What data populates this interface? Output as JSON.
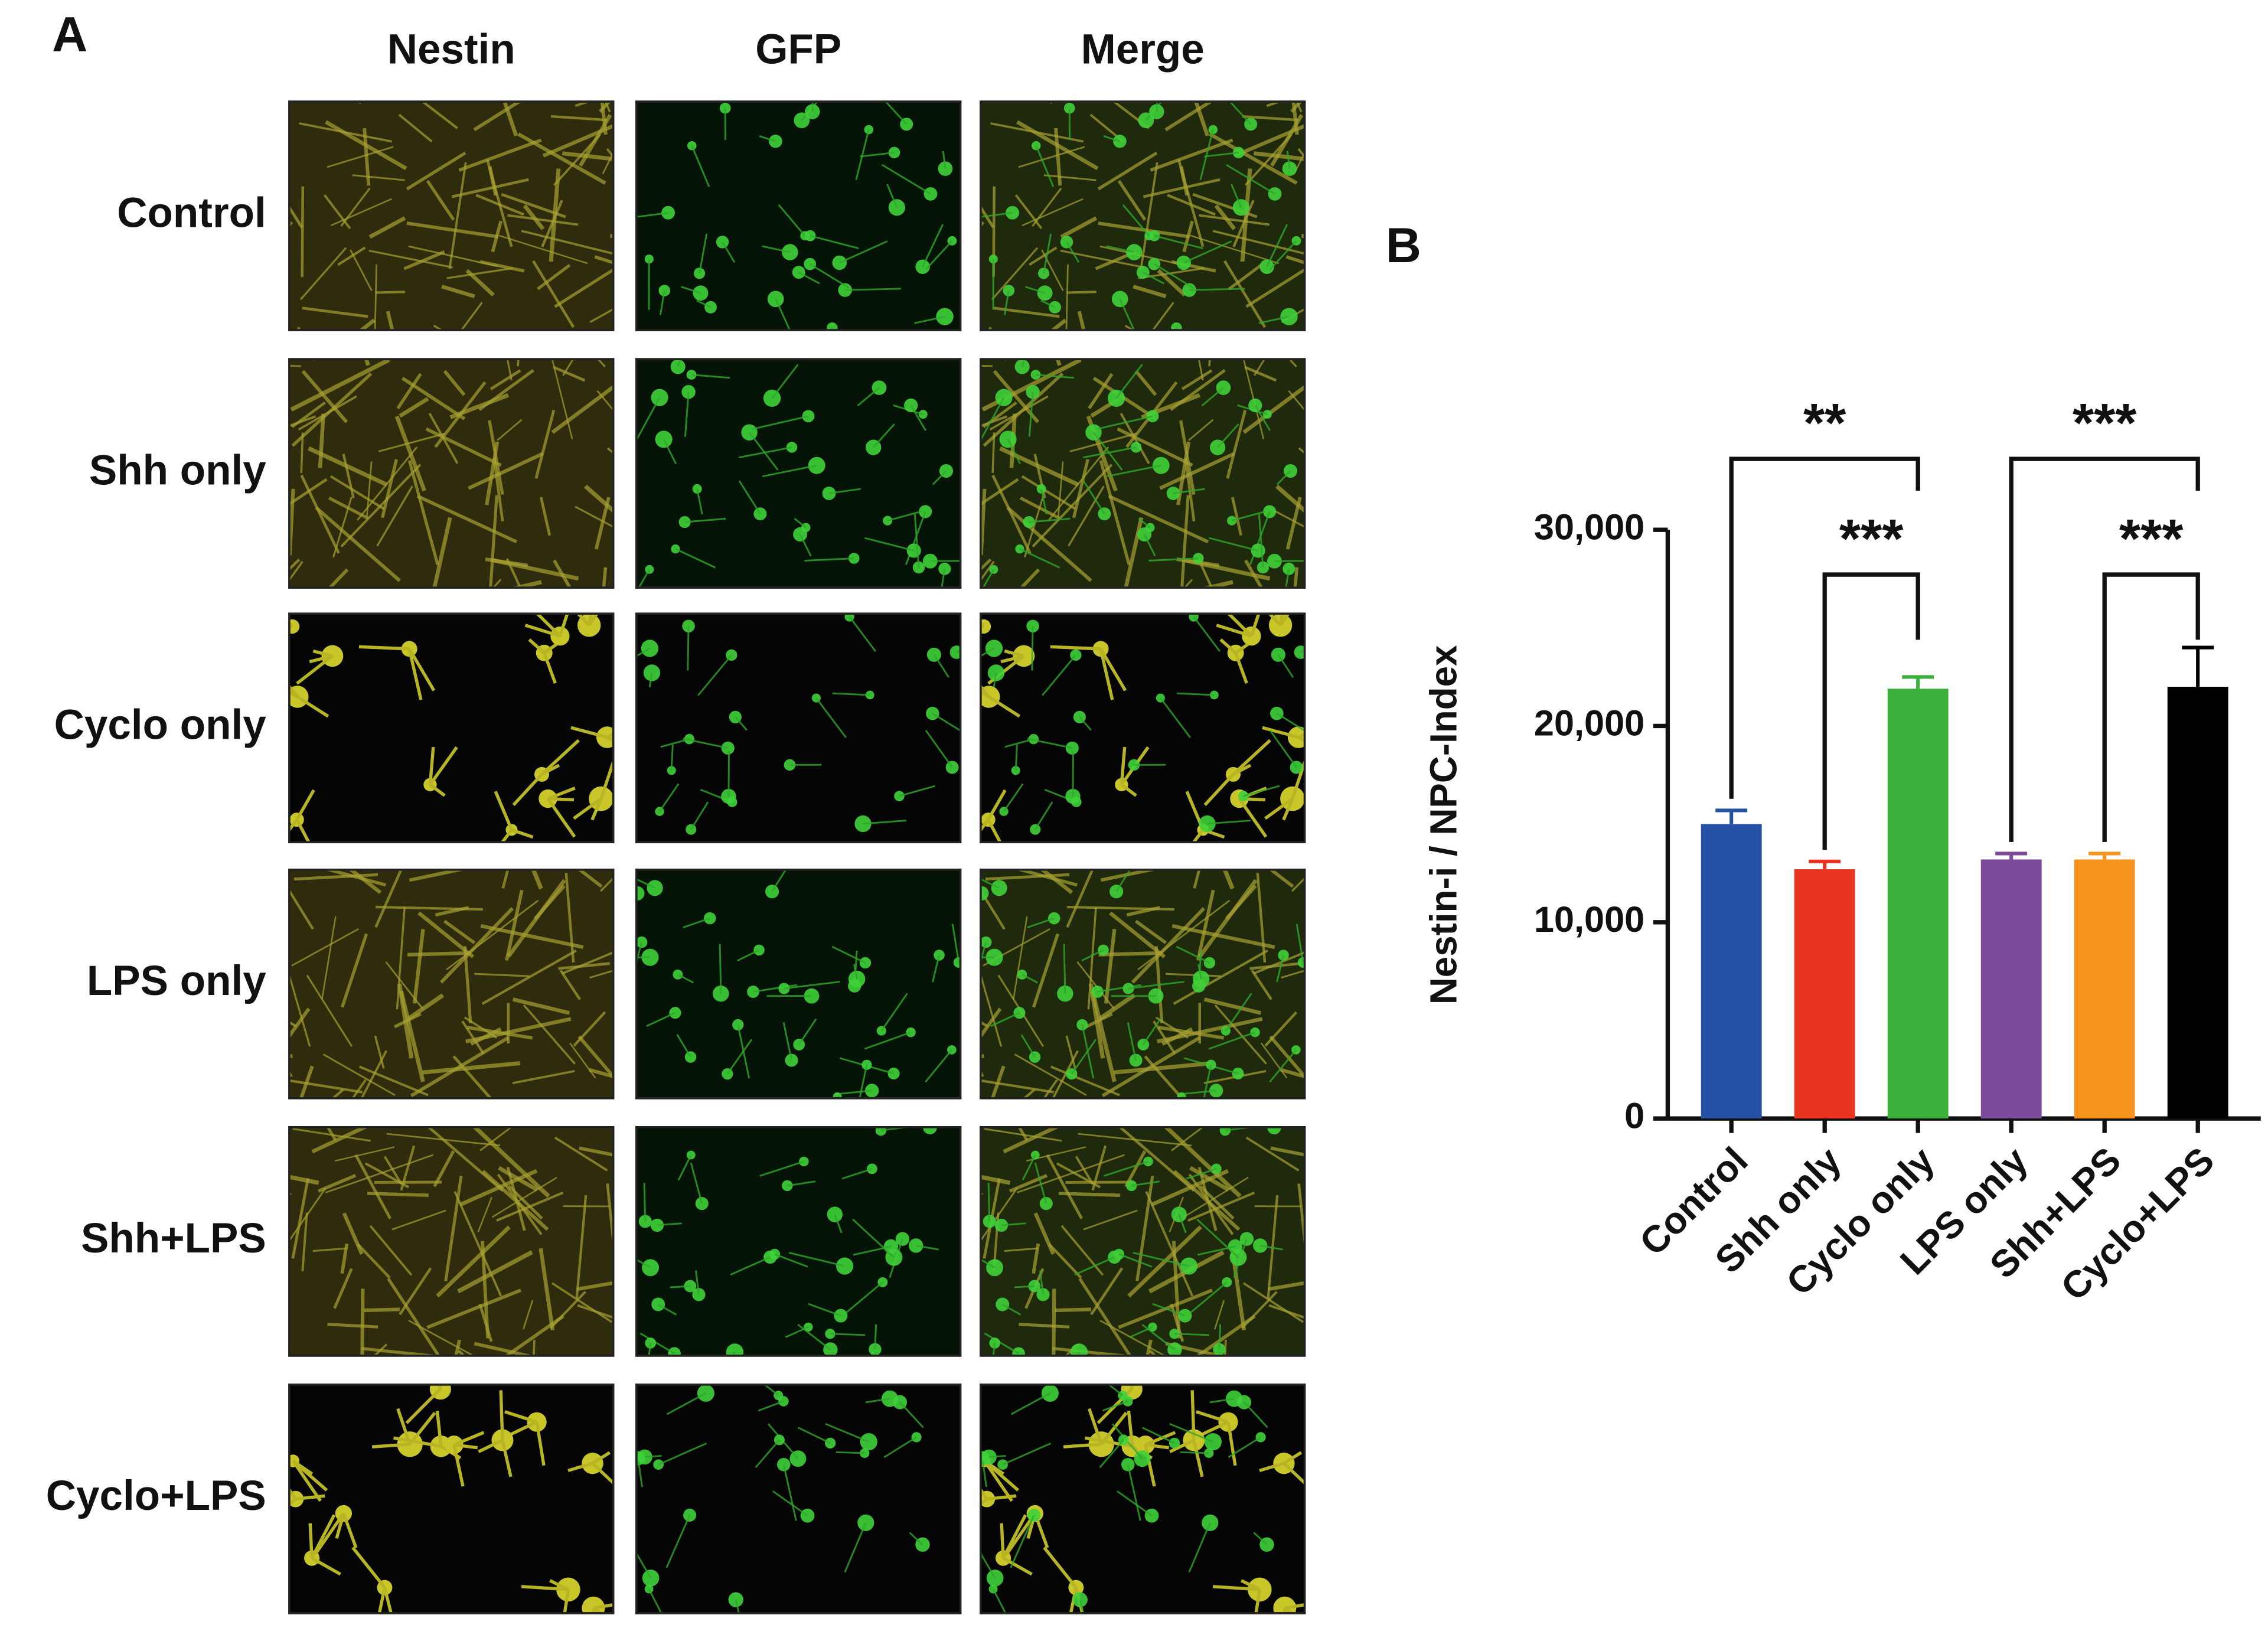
{
  "panel_a": {
    "label": "A",
    "columns": [
      "Nestin",
      "GFP",
      "Merge"
    ],
    "rows": [
      "Control",
      "Shh only",
      "Cyclo only",
      "LPS only",
      "Shh+LPS",
      "Cyclo+LPS"
    ]
  },
  "chart_data": {
    "type": "bar",
    "panel_label": "B",
    "ylabel": "Nestin-i / NPC-Index",
    "categories": [
      "Control",
      "Shh only",
      "Cyclo only",
      "LPS only",
      "Shh+LPS",
      "Cyclo+LPS"
    ],
    "values": [
      15000,
      12700,
      21900,
      13200,
      13200,
      22000
    ],
    "errors": [
      700,
      400,
      600,
      300,
      300,
      2000
    ],
    "colors": [
      "#2451a4",
      "#e8321e",
      "#3bb03a",
      "#7d4a9c",
      "#f7941d",
      "#000000"
    ],
    "ylim": [
      0,
      30000
    ],
    "yticks": [
      0,
      {
        "value": 10000,
        "label": "10,000"
      },
      {
        "value": 20000,
        "label": "20,000"
      },
      {
        "value": 30000,
        "label": "30,000"
      }
    ],
    "comparisons": [
      {
        "label": "**",
        "between": [
          "Control",
          "Cyclo only"
        ]
      },
      {
        "label": "***",
        "between": [
          "Shh only",
          "Cyclo only"
        ]
      },
      {
        "label": "***",
        "between": [
          "LPS only",
          "Cyclo+LPS"
        ]
      },
      {
        "label": "***",
        "between": [
          "Shh+LPS",
          "Cyclo+LPS"
        ]
      }
    ]
  }
}
